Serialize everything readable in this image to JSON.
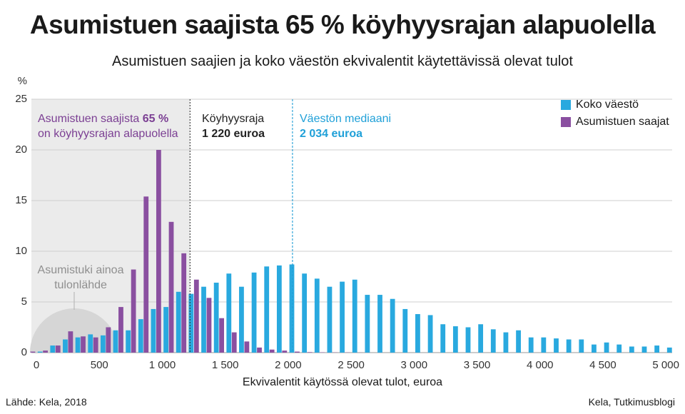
{
  "title": "Asumistuen saajista 65 % köyhyysrajan alapuolella",
  "subtitle": "Asumistuen saajien ja koko väestön ekvivalentit käytettävissä olevat tulot",
  "source": "Lähde: Kela, 2018",
  "credit": "Kela, Tutkimusblogi",
  "colors": {
    "population": "#29a9df",
    "recipients": "#8a4fa0",
    "shade": "#ebebeb",
    "grid": "#cfcfcf"
  },
  "annotations": {
    "share_line1": "Asumistuen saajista",
    "share_pct": "65 %",
    "share_line2": "on köyhyysrajan alapuolella",
    "poverty_label": "Köyhyysraja",
    "poverty_value": "1 220 euroa",
    "median_label": "Väestön mediaani",
    "median_value": "2 034 euroa",
    "only_income_line1": "Asumistuki ainoa",
    "only_income_line2": "tulonlähde"
  },
  "chart_data": {
    "type": "bar",
    "title": "Asumistuen saajista 65 % köyhyysrajan alapuolella",
    "xlabel": "Ekvivalentit käytössä olevat tulot, euroa",
    "ylabel": "%",
    "xlim": [
      -40,
      5050
    ],
    "ylim": [
      0,
      25
    ],
    "bin_width": 100,
    "x_ticks": [
      {
        "value": 0,
        "label": "0"
      },
      {
        "value": 500,
        "label": "500"
      },
      {
        "value": 1000,
        "label": "1 000"
      },
      {
        "value": 1500,
        "label": "1 500"
      },
      {
        "value": 2000,
        "label": "2 000"
      },
      {
        "value": 2500,
        "label": "2 500"
      },
      {
        "value": 3000,
        "label": "3 000"
      },
      {
        "value": 3500,
        "label": "3 500"
      },
      {
        "value": 4000,
        "label": "4 000"
      },
      {
        "value": 4500,
        "label": "4 500"
      },
      {
        "value": 5000,
        "label": "5 000"
      }
    ],
    "y_ticks": [
      0,
      5,
      10,
      15,
      20,
      25
    ],
    "poverty_line": 1220,
    "median_line": 2034,
    "x": [
      0,
      100,
      200,
      300,
      400,
      500,
      600,
      700,
      800,
      900,
      1000,
      1100,
      1200,
      1300,
      1400,
      1500,
      1600,
      1700,
      1800,
      1900,
      2000,
      2100,
      2200,
      2300,
      2400,
      2500,
      2600,
      2700,
      2800,
      2900,
      3000,
      3100,
      3200,
      3300,
      3400,
      3500,
      3600,
      3700,
      3800,
      3900,
      4000,
      4100,
      4200,
      4300,
      4400,
      4500,
      4600,
      4700,
      4800,
      4900,
      5000
    ],
    "series": [
      {
        "name": "Koko väestö",
        "values": [
          0.1,
          0.7,
          1.3,
          1.5,
          1.8,
          1.7,
          2.2,
          2.2,
          3.3,
          4.3,
          4.5,
          6.0,
          5.8,
          6.5,
          6.9,
          7.8,
          6.5,
          7.9,
          8.5,
          8.6,
          8.7,
          7.8,
          7.3,
          6.5,
          7.0,
          7.2,
          5.7,
          5.7,
          5.3,
          4.3,
          3.8,
          3.7,
          2.8,
          2.6,
          2.5,
          2.8,
          2.3,
          2.0,
          2.2,
          1.5,
          1.5,
          1.4,
          1.3,
          1.3,
          0.8,
          1.0,
          0.8,
          0.6,
          0.6,
          0.7,
          0.5
        ]
      },
      {
        "name": "Asumistuen saajat",
        "values": [
          0.1,
          0.2,
          0.7,
          2.1,
          1.6,
          1.5,
          2.5,
          4.5,
          8.2,
          15.4,
          20.0,
          12.9,
          9.8,
          7.2,
          5.4,
          3.4,
          2.0,
          1.1,
          0.5,
          0.3,
          0.2,
          0.1,
          0.05,
          0.03,
          0.02,
          0.02,
          0.01,
          0.0,
          0.0,
          0.0,
          0.0,
          0.0,
          0.0,
          0.0,
          0.0,
          0.0,
          0.0,
          0.0,
          0.0,
          0.0,
          0.0,
          0.0,
          0.0,
          0.0,
          0.0,
          0.0,
          0.0,
          0.0,
          0.0,
          0.0,
          0.0
        ]
      }
    ]
  }
}
